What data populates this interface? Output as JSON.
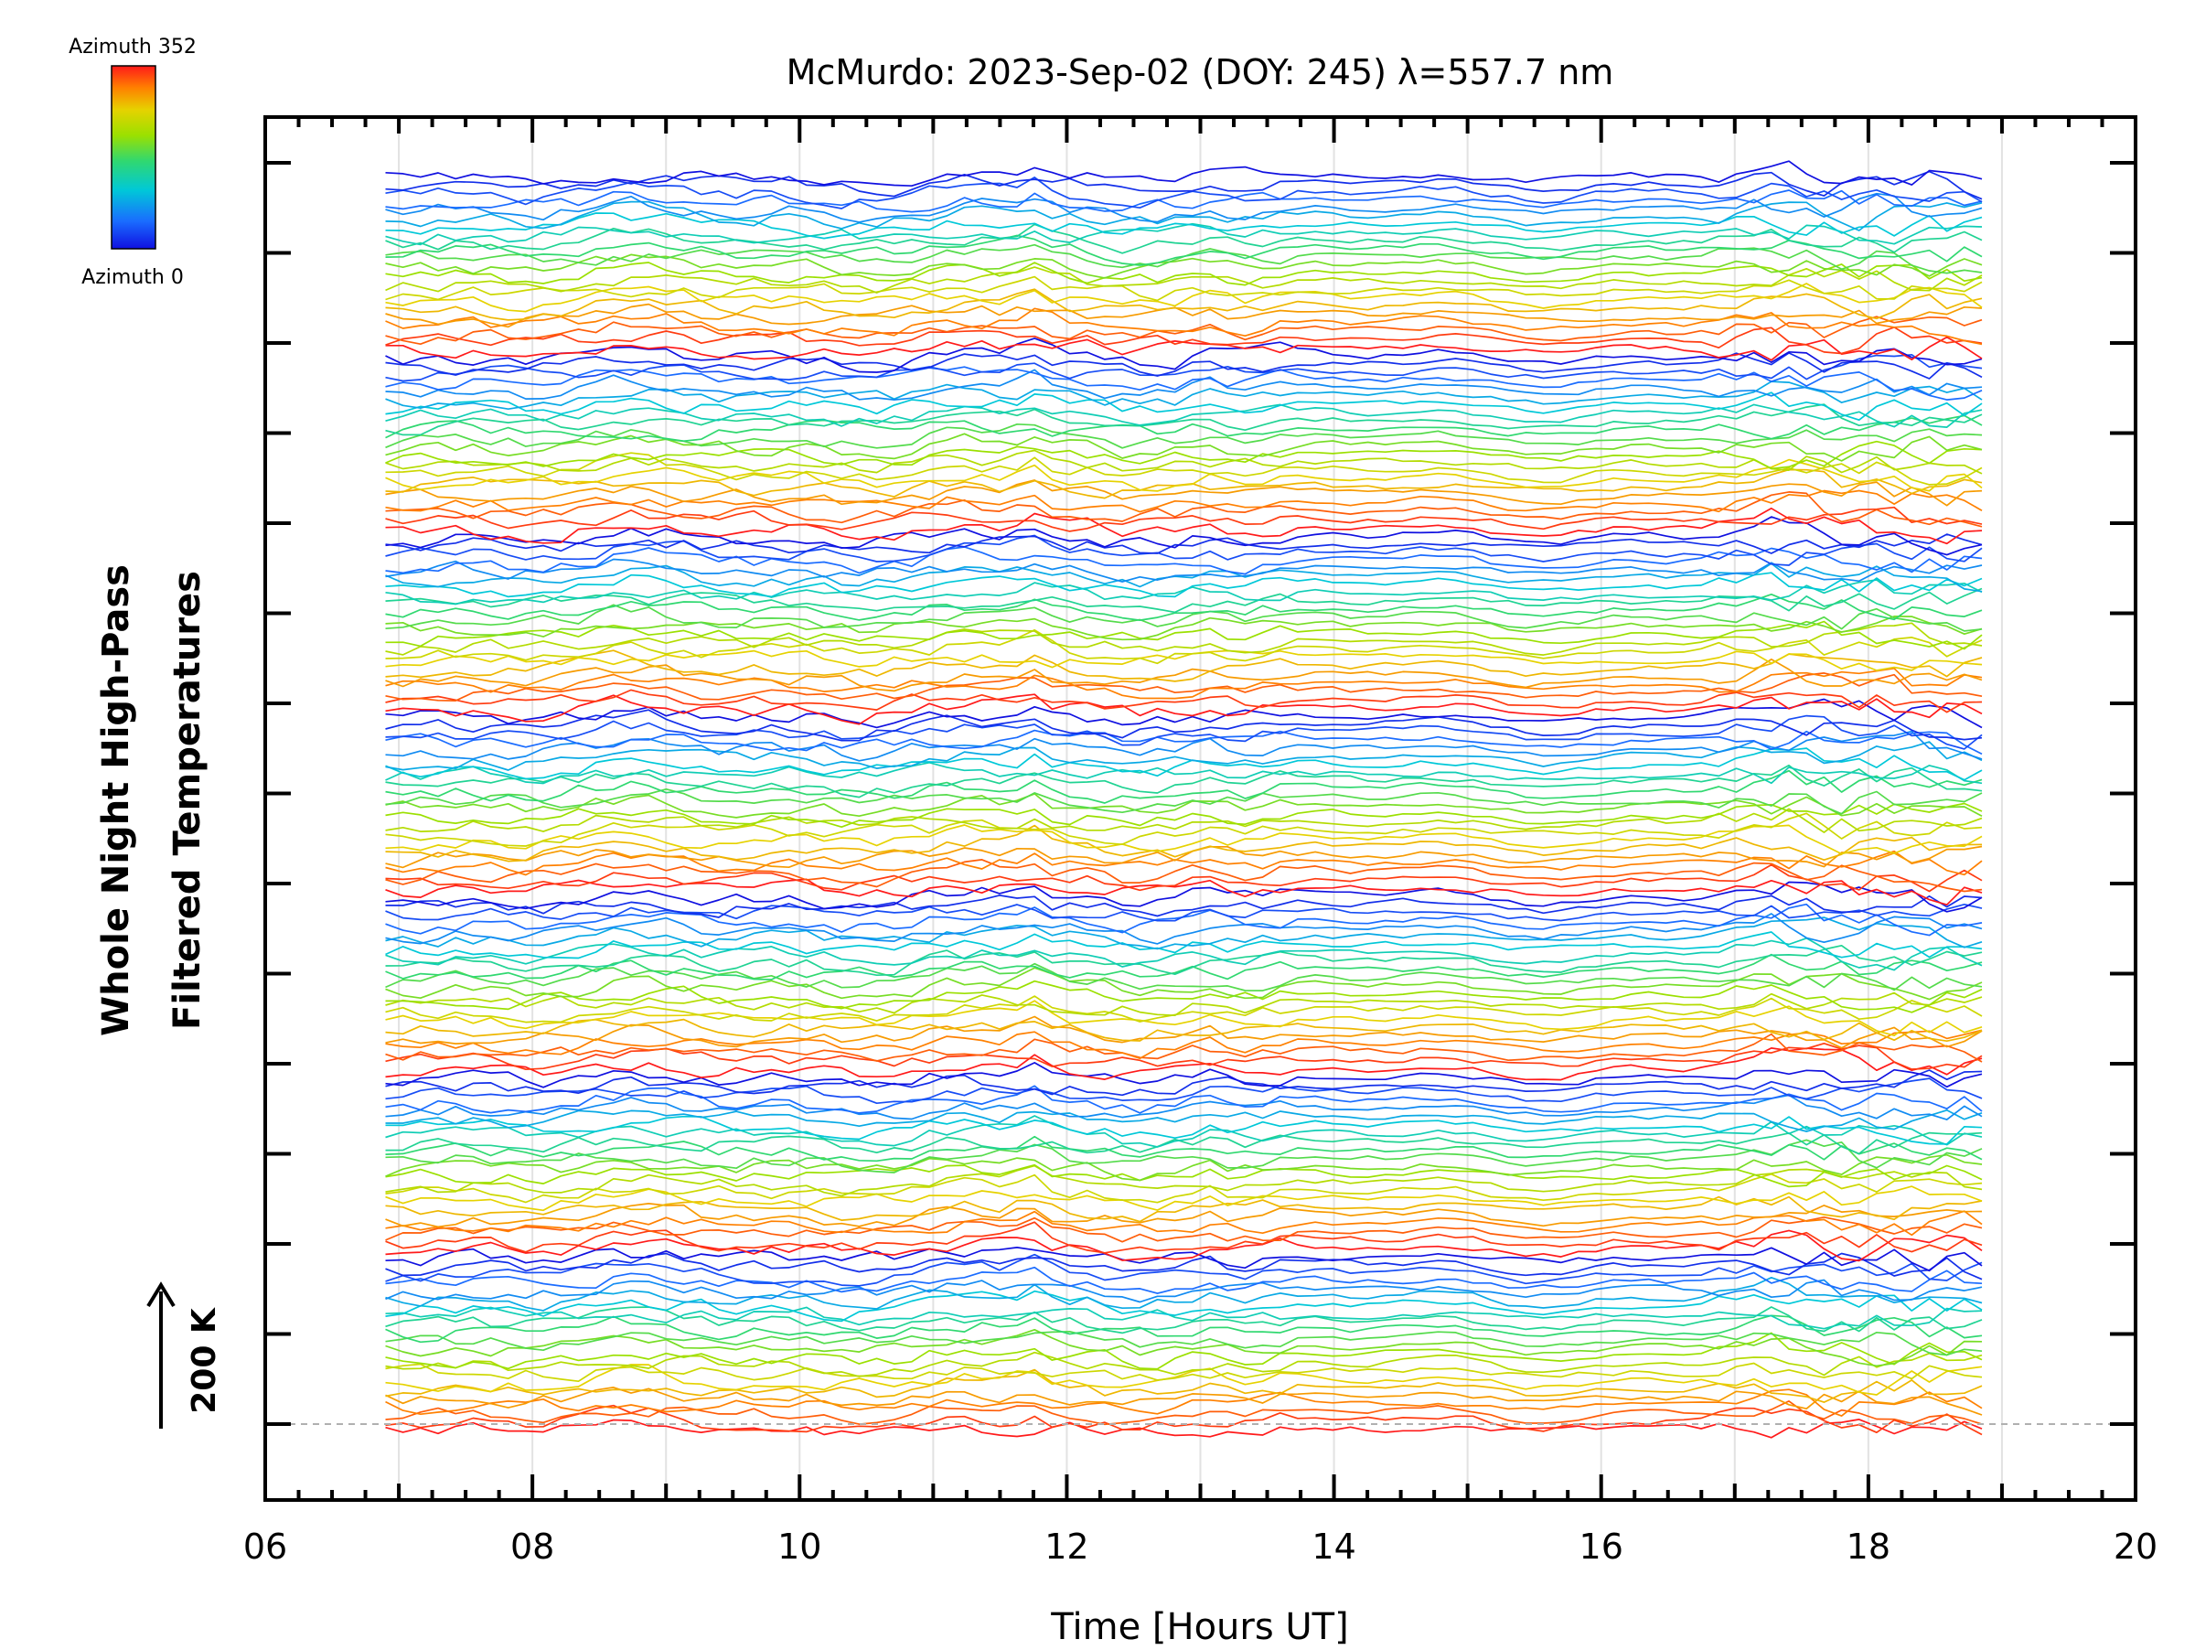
{
  "chart_data": {
    "type": "line",
    "title": "McMurdo: 2023-Sep-02 (DOY: 245) λ=557.7 nm",
    "xlabel": "Time [Hours UT]",
    "ylabel_lines": [
      "Whole Night High-Pass",
      "Filtered Temperatures"
    ],
    "xlim": [
      6,
      20
    ],
    "xtick_labels": [
      "06",
      "08",
      "10",
      "12",
      "14",
      "16",
      "18",
      "20"
    ],
    "x_start": 6.9,
    "x_end": 18.85,
    "colorbar": {
      "top_label": "Azimuth  352",
      "bottom_label": "Azimuth  0",
      "colors": [
        "#ff1a1a",
        "#ff8000",
        "#e6d200",
        "#9be000",
        "#30d870",
        "#00c8d8",
        "#1a6cff",
        "#1010e0"
      ]
    },
    "scale_bar": {
      "label": "200 K"
    },
    "grid": true,
    "groups": 7,
    "traces_per_group": 22
  }
}
